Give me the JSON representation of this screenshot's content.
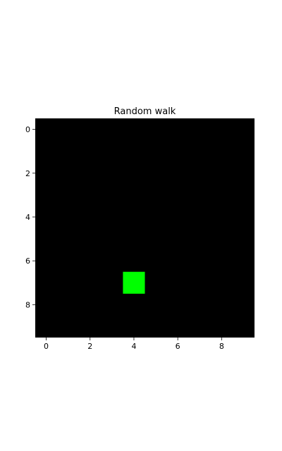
{
  "chart_data": {
    "type": "heatmap",
    "title": "Random walk",
    "xlabel": "",
    "ylabel": "",
    "grid_size": [
      10,
      10
    ],
    "xlim": [
      -0.5,
      9.5
    ],
    "ylim": [
      9.5,
      -0.5
    ],
    "y_axis_inverted": true,
    "xticks": [
      0,
      2,
      4,
      6,
      8
    ],
    "yticks": [
      0,
      2,
      4,
      6,
      8
    ],
    "background_color": "#000000",
    "cells": [
      {
        "row": 7,
        "col": 4,
        "color": "#00ff00"
      }
    ],
    "grid": false
  }
}
